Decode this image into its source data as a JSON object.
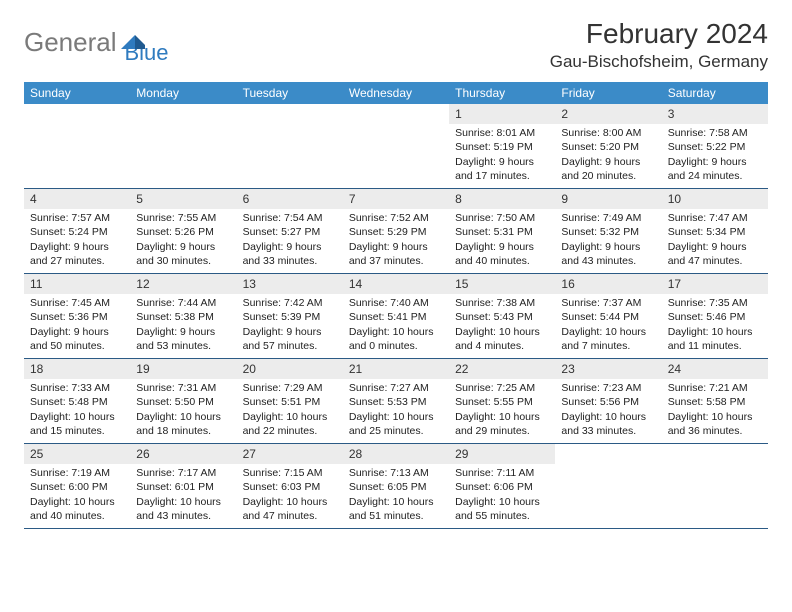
{
  "logo": {
    "text1": "General",
    "text2": "Blue"
  },
  "title": "February 2024",
  "location": "Gau-Bischofsheim, Germany",
  "colors": {
    "header_bg": "#3b8bc8",
    "header_text": "#ffffff",
    "daynum_bg": "#ececec",
    "week_border": "#2b5a85",
    "logo_gray": "#7a7a7a",
    "logo_blue": "#2f7bbf"
  },
  "days_of_week": [
    "Sunday",
    "Monday",
    "Tuesday",
    "Wednesday",
    "Thursday",
    "Friday",
    "Saturday"
  ],
  "weeks": [
    [
      {
        "n": "",
        "sunrise": "",
        "sunset": "",
        "daylight": ""
      },
      {
        "n": "",
        "sunrise": "",
        "sunset": "",
        "daylight": ""
      },
      {
        "n": "",
        "sunrise": "",
        "sunset": "",
        "daylight": ""
      },
      {
        "n": "",
        "sunrise": "",
        "sunset": "",
        "daylight": ""
      },
      {
        "n": "1",
        "sunrise": "Sunrise: 8:01 AM",
        "sunset": "Sunset: 5:19 PM",
        "daylight": "Daylight: 9 hours and 17 minutes."
      },
      {
        "n": "2",
        "sunrise": "Sunrise: 8:00 AM",
        "sunset": "Sunset: 5:20 PM",
        "daylight": "Daylight: 9 hours and 20 minutes."
      },
      {
        "n": "3",
        "sunrise": "Sunrise: 7:58 AM",
        "sunset": "Sunset: 5:22 PM",
        "daylight": "Daylight: 9 hours and 24 minutes."
      }
    ],
    [
      {
        "n": "4",
        "sunrise": "Sunrise: 7:57 AM",
        "sunset": "Sunset: 5:24 PM",
        "daylight": "Daylight: 9 hours and 27 minutes."
      },
      {
        "n": "5",
        "sunrise": "Sunrise: 7:55 AM",
        "sunset": "Sunset: 5:26 PM",
        "daylight": "Daylight: 9 hours and 30 minutes."
      },
      {
        "n": "6",
        "sunrise": "Sunrise: 7:54 AM",
        "sunset": "Sunset: 5:27 PM",
        "daylight": "Daylight: 9 hours and 33 minutes."
      },
      {
        "n": "7",
        "sunrise": "Sunrise: 7:52 AM",
        "sunset": "Sunset: 5:29 PM",
        "daylight": "Daylight: 9 hours and 37 minutes."
      },
      {
        "n": "8",
        "sunrise": "Sunrise: 7:50 AM",
        "sunset": "Sunset: 5:31 PM",
        "daylight": "Daylight: 9 hours and 40 minutes."
      },
      {
        "n": "9",
        "sunrise": "Sunrise: 7:49 AM",
        "sunset": "Sunset: 5:32 PM",
        "daylight": "Daylight: 9 hours and 43 minutes."
      },
      {
        "n": "10",
        "sunrise": "Sunrise: 7:47 AM",
        "sunset": "Sunset: 5:34 PM",
        "daylight": "Daylight: 9 hours and 47 minutes."
      }
    ],
    [
      {
        "n": "11",
        "sunrise": "Sunrise: 7:45 AM",
        "sunset": "Sunset: 5:36 PM",
        "daylight": "Daylight: 9 hours and 50 minutes."
      },
      {
        "n": "12",
        "sunrise": "Sunrise: 7:44 AM",
        "sunset": "Sunset: 5:38 PM",
        "daylight": "Daylight: 9 hours and 53 minutes."
      },
      {
        "n": "13",
        "sunrise": "Sunrise: 7:42 AM",
        "sunset": "Sunset: 5:39 PM",
        "daylight": "Daylight: 9 hours and 57 minutes."
      },
      {
        "n": "14",
        "sunrise": "Sunrise: 7:40 AM",
        "sunset": "Sunset: 5:41 PM",
        "daylight": "Daylight: 10 hours and 0 minutes."
      },
      {
        "n": "15",
        "sunrise": "Sunrise: 7:38 AM",
        "sunset": "Sunset: 5:43 PM",
        "daylight": "Daylight: 10 hours and 4 minutes."
      },
      {
        "n": "16",
        "sunrise": "Sunrise: 7:37 AM",
        "sunset": "Sunset: 5:44 PM",
        "daylight": "Daylight: 10 hours and 7 minutes."
      },
      {
        "n": "17",
        "sunrise": "Sunrise: 7:35 AM",
        "sunset": "Sunset: 5:46 PM",
        "daylight": "Daylight: 10 hours and 11 minutes."
      }
    ],
    [
      {
        "n": "18",
        "sunrise": "Sunrise: 7:33 AM",
        "sunset": "Sunset: 5:48 PM",
        "daylight": "Daylight: 10 hours and 15 minutes."
      },
      {
        "n": "19",
        "sunrise": "Sunrise: 7:31 AM",
        "sunset": "Sunset: 5:50 PM",
        "daylight": "Daylight: 10 hours and 18 minutes."
      },
      {
        "n": "20",
        "sunrise": "Sunrise: 7:29 AM",
        "sunset": "Sunset: 5:51 PM",
        "daylight": "Daylight: 10 hours and 22 minutes."
      },
      {
        "n": "21",
        "sunrise": "Sunrise: 7:27 AM",
        "sunset": "Sunset: 5:53 PM",
        "daylight": "Daylight: 10 hours and 25 minutes."
      },
      {
        "n": "22",
        "sunrise": "Sunrise: 7:25 AM",
        "sunset": "Sunset: 5:55 PM",
        "daylight": "Daylight: 10 hours and 29 minutes."
      },
      {
        "n": "23",
        "sunrise": "Sunrise: 7:23 AM",
        "sunset": "Sunset: 5:56 PM",
        "daylight": "Daylight: 10 hours and 33 minutes."
      },
      {
        "n": "24",
        "sunrise": "Sunrise: 7:21 AM",
        "sunset": "Sunset: 5:58 PM",
        "daylight": "Daylight: 10 hours and 36 minutes."
      }
    ],
    [
      {
        "n": "25",
        "sunrise": "Sunrise: 7:19 AM",
        "sunset": "Sunset: 6:00 PM",
        "daylight": "Daylight: 10 hours and 40 minutes."
      },
      {
        "n": "26",
        "sunrise": "Sunrise: 7:17 AM",
        "sunset": "Sunset: 6:01 PM",
        "daylight": "Daylight: 10 hours and 43 minutes."
      },
      {
        "n": "27",
        "sunrise": "Sunrise: 7:15 AM",
        "sunset": "Sunset: 6:03 PM",
        "daylight": "Daylight: 10 hours and 47 minutes."
      },
      {
        "n": "28",
        "sunrise": "Sunrise: 7:13 AM",
        "sunset": "Sunset: 6:05 PM",
        "daylight": "Daylight: 10 hours and 51 minutes."
      },
      {
        "n": "29",
        "sunrise": "Sunrise: 7:11 AM",
        "sunset": "Sunset: 6:06 PM",
        "daylight": "Daylight: 10 hours and 55 minutes."
      },
      {
        "n": "",
        "sunrise": "",
        "sunset": "",
        "daylight": ""
      },
      {
        "n": "",
        "sunrise": "",
        "sunset": "",
        "daylight": ""
      }
    ]
  ]
}
